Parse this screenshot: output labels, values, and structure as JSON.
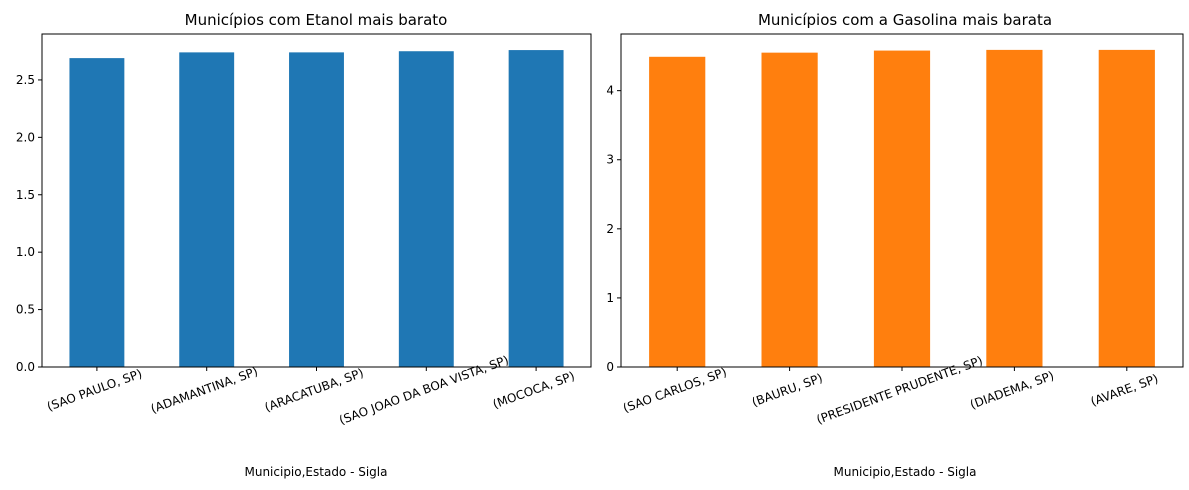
{
  "chart_data": [
    {
      "type": "bar",
      "title": "Municípios com Etanol mais barato",
      "xlabel": "Municipio,Estado - Sigla",
      "ylabel": "",
      "categories": [
        "(SAO PAULO, SP)",
        "(ADAMANTINA, SP)",
        "(ARACATUBA, SP)",
        "(SAO JOAO DA BOA VISTA, SP)",
        "(MOCOCA, SP)"
      ],
      "values": [
        2.69,
        2.74,
        2.74,
        2.75,
        2.76
      ],
      "ylim": [
        0,
        2.9
      ],
      "yticks": [
        0.0,
        0.5,
        1.0,
        1.5,
        2.0,
        2.5
      ],
      "ytick_labels": [
        "0.0",
        "0.5",
        "1.0",
        "1.5",
        "2.0",
        "2.5"
      ],
      "color": "#1f77b4",
      "grid": false,
      "legend": "none"
    },
    {
      "type": "bar",
      "title": "Municípios com a Gasolina mais barata",
      "xlabel": "Municipio,Estado - Sigla",
      "ylabel": "",
      "categories": [
        "(SAO CARLOS, SP)",
        "(BAURU, SP)",
        "(PRESIDENTE PRUDENTE, SP)",
        "(DIADEMA, SP)",
        "(AVARE, SP)"
      ],
      "values": [
        4.49,
        4.55,
        4.58,
        4.59,
        4.59
      ],
      "ylim": [
        0,
        4.82
      ],
      "yticks": [
        0,
        1,
        2,
        3,
        4
      ],
      "ytick_labels": [
        "0",
        "1",
        "2",
        "3",
        "4"
      ],
      "color": "#ff7f0e",
      "grid": false,
      "legend": "none"
    }
  ]
}
